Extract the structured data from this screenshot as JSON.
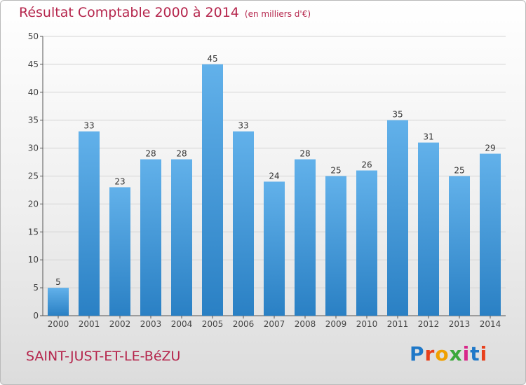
{
  "chart_data": {
    "type": "bar",
    "title": "Résultat Comptable 2000 à 2014",
    "subtitle": "(en milliers d'€)",
    "categories": [
      "2000",
      "2001",
      "2002",
      "2003",
      "2004",
      "2005",
      "2006",
      "2007",
      "2008",
      "2009",
      "2010",
      "2011",
      "2012",
      "2013",
      "2014"
    ],
    "values": [
      5,
      33,
      23,
      28,
      28,
      45,
      33,
      24,
      28,
      25,
      26,
      35,
      31,
      25,
      29
    ],
    "ylim": [
      0,
      50
    ],
    "yticks": [
      0,
      5,
      10,
      15,
      20,
      25,
      30,
      35,
      40,
      45,
      50
    ],
    "xlabel": "",
    "ylabel": "",
    "grid": true,
    "bar_color_top": "#62b1ea",
    "bar_color_bottom": "#2a80c4"
  },
  "footer": {
    "commune": "SAINT-JUST-ET-LE-BéZU",
    "brand": "Proxiti",
    "brand_colors": [
      "#1f78c8",
      "#e8401c",
      "#f0a000",
      "#3aa83a",
      "#d8278a",
      "#1f78c8",
      "#e8401c"
    ]
  },
  "colors": {
    "title": "#b5254c",
    "axis": "#555555",
    "grid": "#d4d4d4"
  }
}
